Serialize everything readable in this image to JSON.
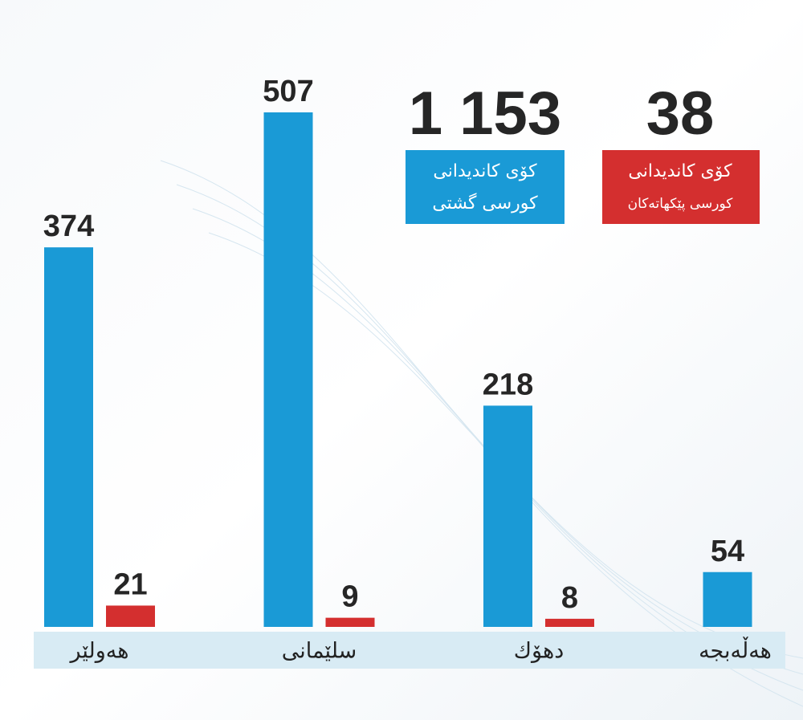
{
  "chart_data": {
    "type": "bar",
    "categories": [
      "هەولێر",
      "سلێمانی",
      "دهۆك",
      "هەڵەبجە"
    ],
    "series": [
      {
        "color": "#1a9ad6",
        "values": [
          374,
          507,
          218,
          54
        ]
      },
      {
        "color": "#d42f2f",
        "values": [
          21,
          9,
          8,
          null
        ]
      }
    ],
    "ylim": [
      0,
      507
    ],
    "summaries": [
      {
        "value": 1153,
        "value_label": "1 153",
        "lines": [
          "کۆی کاندیدانی",
          "کورسی گشتی"
        ],
        "color": "#1a9ad6"
      },
      {
        "value": 38,
        "lines": [
          "کۆی کاندیدانی",
          "کورسی پێکهاتەکان"
        ],
        "color": "#d42f2f"
      }
    ]
  }
}
